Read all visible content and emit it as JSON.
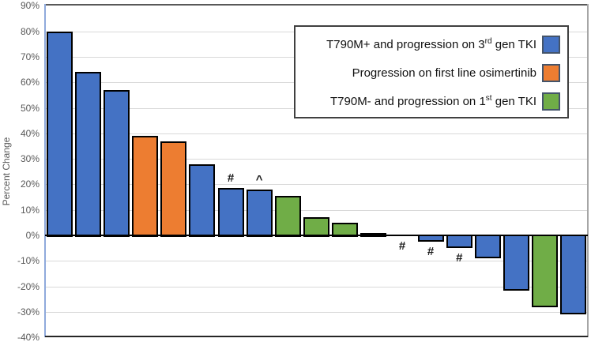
{
  "chart_data": {
    "type": "bar",
    "title": "",
    "xlabel": "",
    "ylabel": "Percent Change",
    "ylim": [
      -40,
      90
    ],
    "ytick_step": 10,
    "ytick_labels": [
      "90%",
      "80%",
      "70%",
      "60%",
      "50%",
      "40%",
      "30%",
      "20%",
      "10%",
      "0%",
      "-10%",
      "-20%",
      "-30%",
      "-40%"
    ],
    "grid": true,
    "legend_position": "top-right-inside",
    "legend": [
      {
        "pre": "T790M+ and progression on 3",
        "sup": "rd",
        "post": " gen TKI",
        "color": "#4472c4"
      },
      {
        "pre": "Progression on first line osimertinib",
        "sup": "",
        "post": "",
        "color": "#ed7d31"
      },
      {
        "pre": "T790M- and progression on 1",
        "sup": "st",
        "post": " gen TKI",
        "color": "#70ad47"
      }
    ],
    "groups": [
      {
        "name": "T790M+ and progression on 3rd gen TKI",
        "color": "#4472c4"
      },
      {
        "name": "Progression on first line osimertinib",
        "color": "#ed7d31"
      },
      {
        "name": "T790M- and progression on 1st gen TKI",
        "color": "#70ad47"
      }
    ],
    "bars": [
      {
        "value": 80,
        "group": 0,
        "annotation": ""
      },
      {
        "value": 64,
        "group": 0,
        "annotation": ""
      },
      {
        "value": 57,
        "group": 0,
        "annotation": ""
      },
      {
        "value": 39,
        "group": 1,
        "annotation": ""
      },
      {
        "value": 37,
        "group": 1,
        "annotation": ""
      },
      {
        "value": 28,
        "group": 0,
        "annotation": ""
      },
      {
        "value": 18.5,
        "group": 0,
        "annotation": "#"
      },
      {
        "value": 18,
        "group": 0,
        "annotation": "^"
      },
      {
        "value": 15.5,
        "group": 2,
        "annotation": ""
      },
      {
        "value": 7,
        "group": 2,
        "annotation": ""
      },
      {
        "value": 5,
        "group": 2,
        "annotation": ""
      },
      {
        "value": 1,
        "group": 0,
        "annotation": ""
      },
      {
        "value": 0,
        "group": 0,
        "annotation": "#"
      },
      {
        "value": -2,
        "group": 0,
        "annotation": "#"
      },
      {
        "value": -4.5,
        "group": 0,
        "annotation": "#"
      },
      {
        "value": -8.5,
        "group": 0,
        "annotation": ""
      },
      {
        "value": -21.5,
        "group": 0,
        "annotation": ""
      },
      {
        "value": -28,
        "group": 2,
        "annotation": ""
      },
      {
        "value": -30.5,
        "group": 0,
        "annotation": ""
      }
    ],
    "colors": {
      "bar_border": "#000000",
      "gridline": "#d9d9d9",
      "axis_text": "#595959",
      "zero_line": "#000000"
    }
  }
}
